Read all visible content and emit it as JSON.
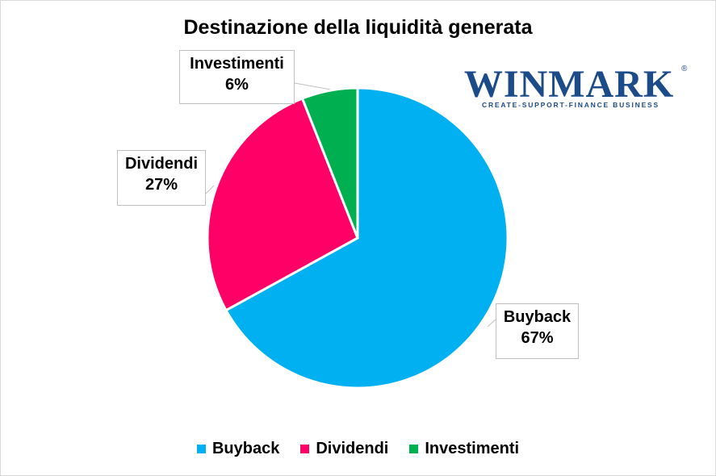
{
  "chart_data": {
    "type": "pie",
    "title": "Destinazione della liquidità generata",
    "categories": [
      "Buyback",
      "Dividendi",
      "Investimenti"
    ],
    "values": [
      67,
      27,
      6
    ],
    "data_labels": [
      {
        "name": "Buyback",
        "value": "67%"
      },
      {
        "name": "Dividendi",
        "value": "27%"
      },
      {
        "name": "Investimenti",
        "value": "6%"
      }
    ],
    "colors": [
      "#00b0f0",
      "#ff0066",
      "#00b050"
    ],
    "legend": {
      "placement": "bottom",
      "items": [
        {
          "label": "Buyback",
          "color": "#00b0f0"
        },
        {
          "label": "Dividendi",
          "color": "#ff0066"
        },
        {
          "label": "Investimenti",
          "color": "#00b050"
        }
      ]
    }
  },
  "logo": {
    "name": "WINMARK",
    "registered": "®",
    "tagline": "CREATE-SUPPORT-FINANCE BUSINESS"
  }
}
